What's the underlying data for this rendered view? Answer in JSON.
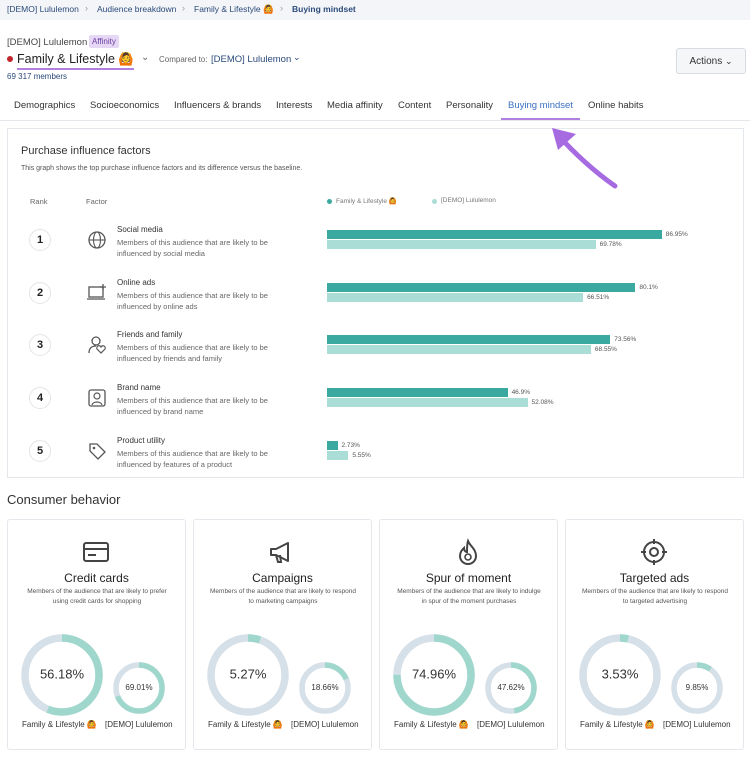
{
  "breadcrumb": [
    "[DEMO] Lululemon",
    "Audience breakdown",
    "Family & Lifestyle 🙆",
    "Buying mindset"
  ],
  "header": {
    "brand": "[DEMO] Lululemon",
    "badge": "Affinity",
    "audience": "Family & Lifestyle 🙆",
    "compared_label": "Compared to:",
    "compared": "[DEMO] Lululemon",
    "members": "69 317 members",
    "actions": "Actions"
  },
  "tabs": [
    "Demographics",
    "Socioeconomics",
    "Influencers & brands",
    "Interests",
    "Media affinity",
    "Content",
    "Personality",
    "Buying mindset",
    "Online habits"
  ],
  "active_tab": 7,
  "purchase": {
    "title": "Purchase influence factors",
    "subtitle": "This graph shows the top purchase influence factors and its difference versus the baseline.",
    "columns": [
      "Rank",
      "Factor"
    ],
    "series": [
      {
        "name": "Family & Lifestyle 🙆",
        "color": "#3aa99f"
      },
      {
        "name": "[DEMO] Lululemon",
        "color": "#a9ddd6"
      }
    ],
    "factors": [
      {
        "rank": 1,
        "name": "Social media",
        "description": "Members of this audience that are likely to be influenced by social media",
        "values": [
          86.95,
          69.78
        ],
        "value_labels": [
          "86.95%",
          "69.78%"
        ]
      },
      {
        "rank": 2,
        "name": "Online ads",
        "description": "Members of this audience that are likely to be influenced by online ads",
        "values": [
          80.1,
          66.51
        ],
        "value_labels": [
          "80.1%",
          "66.51%"
        ]
      },
      {
        "rank": 3,
        "name": "Friends and family",
        "description": "Members of this audience that are likely to be influenced by friends and family",
        "values": [
          73.56,
          68.55
        ],
        "value_labels": [
          "73.56%",
          "68.55%"
        ]
      },
      {
        "rank": 4,
        "name": "Brand name",
        "description": "Members of this audience that are likely to be influenced by brand name",
        "values": [
          46.9,
          52.08
        ],
        "value_labels": [
          "46.9%",
          "52.08%"
        ]
      },
      {
        "rank": 5,
        "name": "Product utility",
        "description": "Members of this audience that are likely to be influenced by features of a product",
        "values": [
          2.73,
          5.55
        ],
        "value_labels": [
          "2.73%",
          "5.55%"
        ]
      }
    ]
  },
  "behavior": {
    "title": "Consumer behavior",
    "cards": [
      {
        "title": "Credit cards",
        "description": "Members of the audience that are likely to prefer using credit cards for shopping",
        "values": [
          56.18,
          69.01
        ],
        "value_labels": [
          "56.18%",
          "69.01%"
        ]
      },
      {
        "title": "Campaigns",
        "description": "Members of the audience that are likely to respond to marketing campaigns",
        "values": [
          5.27,
          18.66
        ],
        "value_labels": [
          "5.27%",
          "18.66%"
        ]
      },
      {
        "title": "Spur of moment",
        "description": "Members of the audience that are likely to indulge in spur of the moment purchases",
        "values": [
          74.96,
          47.62
        ],
        "value_labels": [
          "74.96%",
          "47.62%"
        ]
      },
      {
        "title": "Targeted ads",
        "description": "Members of the audience that are likely to respond to targeted advertising",
        "values": [
          3.53,
          9.85
        ],
        "value_labels": [
          "3.53%",
          "9.85%"
        ]
      }
    ]
  }
}
